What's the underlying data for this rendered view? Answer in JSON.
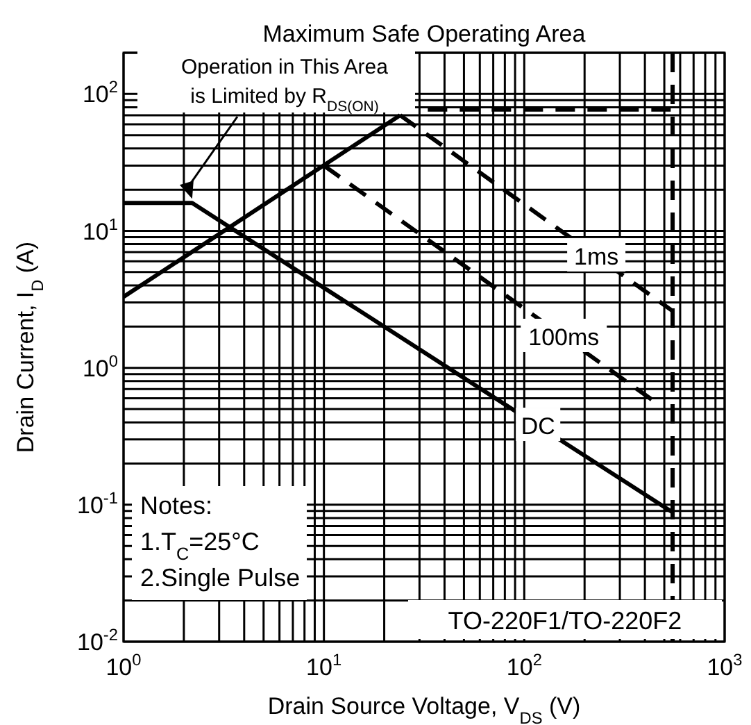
{
  "chart_data": {
    "type": "line",
    "title": "Maximum Safe Operating Area",
    "xlabel": "Drain Source Voltage, V$_{DS}$ (V)",
    "ylabel": "Drain Current, I$_{D}$ (A)",
    "log": "xy",
    "grid": true,
    "xlim": [
      1,
      1000
    ],
    "ylim": [
      0.01,
      200
    ],
    "xticks": [
      {
        "value": 1,
        "label": "10$^{0}$"
      },
      {
        "value": 10,
        "label": "10$^{1}$"
      },
      {
        "value": 100,
        "label": "10$^{2}$"
      },
      {
        "value": 1000,
        "label": "10$^{3}$"
      }
    ],
    "yticks": [
      {
        "value": 0.01,
        "label": "10$^{-2}$"
      },
      {
        "value": 0.1,
        "label": "10$^{-1}$"
      },
      {
        "value": 1,
        "label": "10$^{0}$"
      },
      {
        "value": 10,
        "label": "10$^{1}$"
      },
      {
        "value": 100,
        "label": "10$^{2}$"
      }
    ],
    "series": [
      {
        "color": "#000000",
        "line_style": "solid",
        "x": [
          1,
          24
        ],
        "values": [
          3.3,
          70
        ]
      },
      {
        "color": "#000000",
        "line_style": "dashed",
        "x": [
          33,
          550
        ],
        "values": [
          77,
          77
        ]
      },
      {
        "name": "1ms",
        "color": "#000000",
        "line_style": "dashed",
        "x": [
          24,
          550
        ],
        "values": [
          70,
          2.6
        ]
      },
      {
        "name": "100ms",
        "color": "#000000",
        "line_style": "dashed",
        "x": [
          10,
          460
        ],
        "values": [
          30,
          0.55
        ]
      },
      {
        "name": "DC",
        "color": "#000000",
        "line_style": "solid",
        "x": [
          1,
          2.2,
          550
        ],
        "values": [
          16,
          16,
          0.088
        ]
      }
    ],
    "ref_lines": [
      {
        "axis": "x",
        "value": 550,
        "color": "#000000",
        "line_style": "dashed"
      }
    ],
    "annotations": [
      "Operation in This Area is Limited by R$_{DS(ON)}$",
      "Notes:",
      "1.T$_{C}$=25°C",
      "2.Single Pulse",
      "TO-220F1/TO-220F2"
    ]
  }
}
